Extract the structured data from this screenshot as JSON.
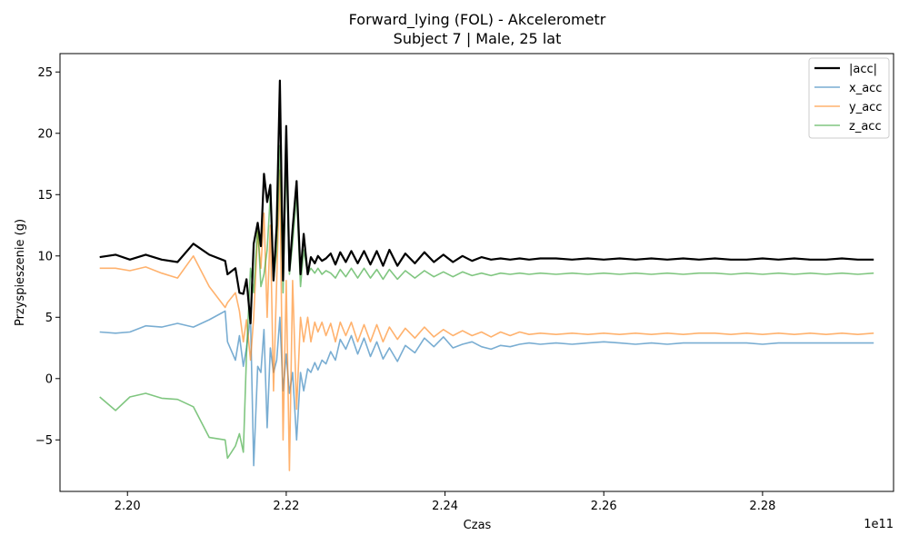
{
  "chart_data": {
    "type": "line",
    "title": "Forward_lying (FOL) - Akcelerometr",
    "subtitle": "Subject 7 | Male, 25 lat",
    "xlabel": "Czas",
    "ylabel": "Przyspieszenie (g)",
    "x_offset_label": "1e11",
    "xlim": [
      2.1915,
      2.2965
    ],
    "ylim": [
      -9.2,
      26.5
    ],
    "x_ticks": [
      2.2,
      2.22,
      2.24,
      2.26,
      2.28
    ],
    "x_tick_labels": [
      "2.20",
      "2.22",
      "2.24",
      "2.26",
      "2.28"
    ],
    "y_ticks": [
      -5,
      0,
      5,
      10,
      15,
      20,
      25
    ],
    "y_tick_labels": [
      "−5",
      "0",
      "5",
      "10",
      "15",
      "20",
      "25"
    ],
    "grid": false,
    "legend_position": "top-right",
    "series": [
      {
        "name": "|acc|",
        "color": "#000000",
        "x": [
          2.1965,
          2.1985,
          2.2003,
          2.2023,
          2.2043,
          2.2063,
          2.2083,
          2.2103,
          2.2123,
          2.2126,
          2.2136,
          2.2141,
          2.2146,
          2.215,
          2.2155,
          2.2159,
          2.2164,
          2.2168,
          2.2172,
          2.2176,
          2.218,
          2.2184,
          2.2188,
          2.2192,
          2.2196,
          2.22,
          2.2204,
          2.2208,
          2.2213,
          2.2218,
          2.2222,
          2.2227,
          2.2231,
          2.2236,
          2.224,
          2.2245,
          2.225,
          2.2256,
          2.2262,
          2.2268,
          2.2275,
          2.2282,
          2.229,
          2.2298,
          2.2306,
          2.2314,
          2.2322,
          2.233,
          2.234,
          2.235,
          2.2362,
          2.2374,
          2.2386,
          2.2398,
          2.241,
          2.2422,
          2.2434,
          2.2446,
          2.2458,
          2.247,
          2.2482,
          2.2494,
          2.2506,
          2.252,
          2.254,
          2.256,
          2.258,
          2.26,
          2.262,
          2.264,
          2.266,
          2.268,
          2.27,
          2.272,
          2.274,
          2.276,
          2.278,
          2.28,
          2.282,
          2.284,
          2.286,
          2.288,
          2.29,
          2.292,
          2.294
        ],
        "y": [
          9.9,
          10.1,
          9.7,
          10.1,
          9.7,
          9.5,
          11.0,
          10.1,
          9.6,
          8.5,
          9.0,
          7.0,
          6.9,
          8.1,
          4.5,
          11.0,
          12.7,
          10.8,
          16.7,
          14.4,
          15.8,
          8.0,
          12.5,
          24.3,
          8.0,
          20.6,
          8.8,
          12.2,
          16.1,
          8.5,
          11.8,
          8.5,
          9.9,
          9.4,
          10.0,
          9.6,
          9.8,
          10.2,
          9.3,
          10.3,
          9.5,
          10.4,
          9.4,
          10.4,
          9.3,
          10.4,
          9.2,
          10.5,
          9.2,
          10.2,
          9.4,
          10.3,
          9.5,
          10.1,
          9.5,
          10.0,
          9.6,
          9.9,
          9.7,
          9.8,
          9.7,
          9.8,
          9.7,
          9.8,
          9.8,
          9.7,
          9.8,
          9.7,
          9.8,
          9.7,
          9.8,
          9.7,
          9.8,
          9.7,
          9.8,
          9.7,
          9.7,
          9.8,
          9.7,
          9.8,
          9.7,
          9.7,
          9.8,
          9.7,
          9.7
        ]
      },
      {
        "name": "x_acc",
        "color": "#1f77b4",
        "x": [
          2.1965,
          2.1985,
          2.2003,
          2.2023,
          2.2043,
          2.2063,
          2.2083,
          2.2103,
          2.2123,
          2.2126,
          2.2136,
          2.2141,
          2.2146,
          2.215,
          2.2155,
          2.2159,
          2.2164,
          2.2168,
          2.2172,
          2.2176,
          2.218,
          2.2184,
          2.2188,
          2.2192,
          2.2196,
          2.22,
          2.2204,
          2.2208,
          2.2213,
          2.2218,
          2.2222,
          2.2227,
          2.2231,
          2.2236,
          2.224,
          2.2245,
          2.225,
          2.2256,
          2.2262,
          2.2268,
          2.2275,
          2.2282,
          2.229,
          2.2298,
          2.2306,
          2.2314,
          2.2322,
          2.233,
          2.234,
          2.235,
          2.2362,
          2.2374,
          2.2386,
          2.2398,
          2.241,
          2.2422,
          2.2434,
          2.2446,
          2.2458,
          2.247,
          2.2482,
          2.2494,
          2.2506,
          2.252,
          2.254,
          2.256,
          2.258,
          2.26,
          2.262,
          2.264,
          2.266,
          2.268,
          2.27,
          2.272,
          2.274,
          2.276,
          2.278,
          2.28,
          2.282,
          2.284,
          2.286,
          2.288,
          2.29,
          2.292,
          2.294
        ],
        "y": [
          3.8,
          3.7,
          3.8,
          4.3,
          4.2,
          4.5,
          4.2,
          4.8,
          5.5,
          3.0,
          1.5,
          3.5,
          1.0,
          2.5,
          5.0,
          -7.1,
          1.0,
          0.5,
          4.0,
          -4.0,
          2.5,
          0.5,
          1.5,
          5.0,
          -1.0,
          2.0,
          -1.2,
          0.5,
          -5.0,
          0.5,
          -1.0,
          0.8,
          0.5,
          1.3,
          0.7,
          1.5,
          1.2,
          2.2,
          1.5,
          3.2,
          2.4,
          3.5,
          2.0,
          3.3,
          1.8,
          3.0,
          1.6,
          2.5,
          1.4,
          2.7,
          2.1,
          3.3,
          2.6,
          3.4,
          2.5,
          2.8,
          3.0,
          2.6,
          2.4,
          2.7,
          2.6,
          2.8,
          2.9,
          2.8,
          2.9,
          2.8,
          2.9,
          3.0,
          2.9,
          2.8,
          2.9,
          2.8,
          2.9,
          2.9,
          2.9,
          2.9,
          2.9,
          2.8,
          2.9,
          2.9,
          2.9,
          2.9,
          2.9,
          2.9,
          2.9
        ]
      },
      {
        "name": "y_acc",
        "color": "#ff7f0e",
        "x": [
          2.1965,
          2.1985,
          2.2003,
          2.2023,
          2.2043,
          2.2063,
          2.2083,
          2.2103,
          2.2123,
          2.2126,
          2.2136,
          2.2141,
          2.2146,
          2.215,
          2.2155,
          2.2159,
          2.2164,
          2.2168,
          2.2172,
          2.2176,
          2.218,
          2.2184,
          2.2188,
          2.2192,
          2.2196,
          2.22,
          2.2204,
          2.2208,
          2.2213,
          2.2218,
          2.2222,
          2.2227,
          2.2231,
          2.2236,
          2.224,
          2.2245,
          2.225,
          2.2256,
          2.2262,
          2.2268,
          2.2275,
          2.2282,
          2.229,
          2.2298,
          2.2306,
          2.2314,
          2.2322,
          2.233,
          2.234,
          2.235,
          2.2362,
          2.2374,
          2.2386,
          2.2398,
          2.241,
          2.2422,
          2.2434,
          2.2446,
          2.2458,
          2.247,
          2.2482,
          2.2494,
          2.2506,
          2.252,
          2.254,
          2.256,
          2.258,
          2.26,
          2.262,
          2.264,
          2.266,
          2.268,
          2.27,
          2.272,
          2.274,
          2.276,
          2.278,
          2.28,
          2.282,
          2.284,
          2.286,
          2.288,
          2.29,
          2.292,
          2.294
        ],
        "y": [
          9.0,
          9.0,
          8.8,
          9.1,
          8.6,
          8.2,
          10.0,
          7.5,
          5.8,
          6.2,
          7.0,
          5.5,
          3.0,
          4.8,
          1.5,
          5.0,
          12.0,
          9.0,
          13.5,
          5.0,
          12.5,
          -1.0,
          8.0,
          17.0,
          -5.0,
          8.0,
          -7.5,
          8.0,
          -2.5,
          5.0,
          3.0,
          5.0,
          3.0,
          4.6,
          3.8,
          4.6,
          3.5,
          4.5,
          3.0,
          4.6,
          3.5,
          4.6,
          3.0,
          4.4,
          3.0,
          4.4,
          3.0,
          4.2,
          3.2,
          4.1,
          3.3,
          4.2,
          3.4,
          4.0,
          3.5,
          3.9,
          3.5,
          3.8,
          3.4,
          3.8,
          3.5,
          3.8,
          3.6,
          3.7,
          3.6,
          3.7,
          3.6,
          3.7,
          3.6,
          3.7,
          3.6,
          3.7,
          3.6,
          3.7,
          3.7,
          3.6,
          3.7,
          3.6,
          3.7,
          3.6,
          3.7,
          3.6,
          3.7,
          3.6,
          3.7
        ]
      },
      {
        "name": "z_acc",
        "color": "#2ca02c",
        "x": [
          2.1965,
          2.1985,
          2.2003,
          2.2023,
          2.2043,
          2.2063,
          2.2083,
          2.2103,
          2.2123,
          2.2126,
          2.2136,
          2.2141,
          2.2146,
          2.215,
          2.2155,
          2.2159,
          2.2164,
          2.2168,
          2.2172,
          2.2176,
          2.218,
          2.2184,
          2.2188,
          2.2192,
          2.2196,
          2.22,
          2.2204,
          2.2208,
          2.2213,
          2.2218,
          2.2222,
          2.2227,
          2.2231,
          2.2236,
          2.224,
          2.2245,
          2.225,
          2.2256,
          2.2262,
          2.2268,
          2.2275,
          2.2282,
          2.229,
          2.2298,
          2.2306,
          2.2314,
          2.2322,
          2.233,
          2.234,
          2.235,
          2.2362,
          2.2374,
          2.2386,
          2.2398,
          2.241,
          2.2422,
          2.2434,
          2.2446,
          2.2458,
          2.247,
          2.2482,
          2.2494,
          2.2506,
          2.252,
          2.254,
          2.256,
          2.258,
          2.26,
          2.262,
          2.264,
          2.266,
          2.268,
          2.27,
          2.272,
          2.274,
          2.276,
          2.278,
          2.28,
          2.282,
          2.284,
          2.286,
          2.288,
          2.29,
          2.292,
          2.294
        ],
        "y": [
          -1.5,
          -2.6,
          -1.5,
          -1.2,
          -1.6,
          -1.7,
          -2.3,
          -4.8,
          -5.0,
          -6.5,
          -5.5,
          -4.5,
          -6.0,
          2.0,
          9.0,
          7.0,
          12.5,
          7.5,
          8.5,
          10.5,
          15.0,
          8.0,
          10.5,
          19.0,
          7.0,
          18.0,
          8.5,
          11.0,
          15.0,
          7.5,
          10.5,
          8.5,
          9.0,
          8.6,
          9.0,
          8.5,
          8.8,
          8.6,
          8.2,
          8.9,
          8.3,
          9.0,
          8.2,
          9.0,
          8.2,
          8.9,
          8.1,
          8.9,
          8.1,
          8.8,
          8.2,
          8.8,
          8.3,
          8.7,
          8.3,
          8.7,
          8.4,
          8.6,
          8.4,
          8.6,
          8.5,
          8.6,
          8.5,
          8.6,
          8.5,
          8.6,
          8.5,
          8.6,
          8.5,
          8.6,
          8.5,
          8.6,
          8.5,
          8.6,
          8.6,
          8.5,
          8.6,
          8.5,
          8.6,
          8.5,
          8.6,
          8.5,
          8.6,
          8.5,
          8.6
        ]
      }
    ]
  }
}
